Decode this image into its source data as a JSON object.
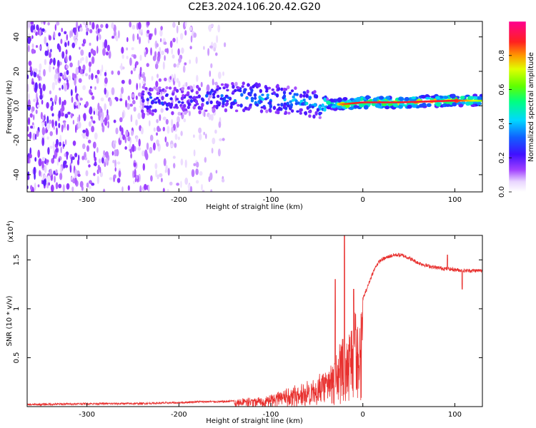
{
  "title": "C2E3.2024.106.20.42.G20",
  "chart_data": [
    {
      "type": "heatmap",
      "xlabel": "Height of straight line (km)",
      "ylabel": "Frequency (Hz)",
      "xlim": [
        -365,
        130
      ],
      "ylim": [
        -50,
        49
      ],
      "xticks": [
        -300,
        -200,
        -100,
        0,
        100
      ],
      "yticks": [
        -40,
        -20,
        0,
        20,
        40
      ],
      "colorbar": {
        "label": "Normalized spectral amplitude",
        "range": [
          0,
          1
        ],
        "ticks": [
          0.0,
          0.2,
          0.4,
          0.6,
          0.8
        ],
        "colormap": "rainbow (white → purple → blue → cyan → green → yellow → red → magenta)"
      },
      "features": {
        "noise_region_x": [
          -365,
          -150
        ],
        "signal_band": [
          {
            "x": -240,
            "freq": 3,
            "amp": 0.35
          },
          {
            "x": -200,
            "freq": 3,
            "amp": 0.3
          },
          {
            "x": -160,
            "freq": 5,
            "amp": 0.35
          },
          {
            "x": -120,
            "freq": 5,
            "amp": 0.45
          },
          {
            "x": -80,
            "freq": 3,
            "amp": 0.45
          },
          {
            "x": -50,
            "freq": 1,
            "amp": 0.45
          },
          {
            "x": -20,
            "freq": 1,
            "amp": 0.8
          },
          {
            "x": 0,
            "freq": 2,
            "amp": 0.85
          },
          {
            "x": 40,
            "freq": 2,
            "amp": 0.85
          },
          {
            "x": 100,
            "freq": 3,
            "amp": 0.85
          },
          {
            "x": 130,
            "freq": 3,
            "amp": 0.6
          }
        ]
      },
      "grid": false
    },
    {
      "type": "line",
      "xlabel": "Height of straight line (km)",
      "ylabel": "SNR (10 * v/v)",
      "yscale_label": "(x10",
      "yscale_exp": "4",
      "xlim": [
        -365,
        130
      ],
      "ylim": [
        0,
        1.75
      ],
      "xticks": [
        -300,
        -200,
        -100,
        0,
        100
      ],
      "yticks": [
        0.5,
        1.0,
        1.5
      ],
      "color": "#e8302e",
      "grid": false,
      "series": [
        {
          "envelope_x": [
            -365,
            -300,
            -250,
            -200,
            -180,
            -150,
            -130,
            -110,
            -90,
            -70,
            -50,
            -40,
            -30,
            -25,
            -20,
            -18,
            -16,
            -14,
            -12,
            -10,
            -8,
            -5,
            0,
            5,
            10,
            15,
            20,
            25,
            30,
            35,
            40,
            45,
            50,
            60,
            70,
            80,
            90,
            100,
            110,
            120,
            130
          ],
          "envelope_y": [
            0.02,
            0.03,
            0.03,
            0.04,
            0.05,
            0.05,
            0.07,
            0.1,
            0.15,
            0.22,
            0.3,
            0.38,
            0.5,
            0.65,
            0.75,
            0.7,
            0.8,
            0.85,
            0.9,
            0.95,
            1.0,
            1.05,
            1.1,
            1.22,
            1.35,
            1.45,
            1.5,
            1.52,
            1.54,
            1.55,
            1.55,
            1.54,
            1.52,
            1.47,
            1.44,
            1.42,
            1.41,
            1.4,
            1.39,
            1.39,
            1.39
          ],
          "spikes": [
            {
              "x": -20,
              "y": 1.75
            },
            {
              "x": -30,
              "y": 1.3
            },
            {
              "x": -10,
              "y": 1.2
            },
            {
              "x": 92,
              "y": 1.55
            },
            {
              "x": 108,
              "y": 1.2
            }
          ]
        }
      ]
    }
  ]
}
